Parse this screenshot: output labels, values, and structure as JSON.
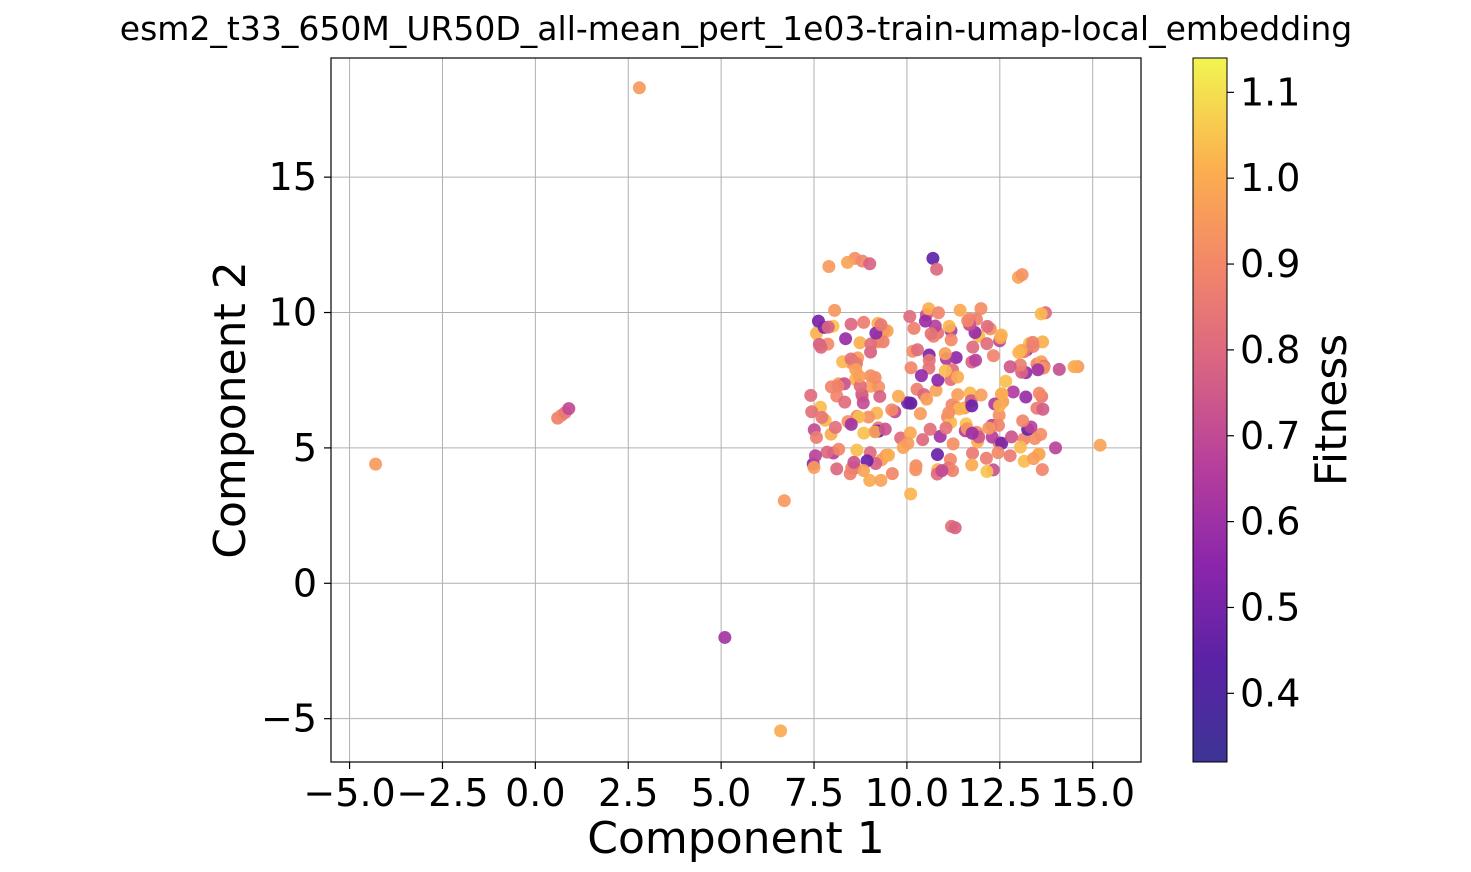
{
  "chart_data": {
    "type": "scatter",
    "title": "esm2_t33_650M_UR50D_all-mean_pert_1e03-train-umap-local_embedding",
    "xlabel": "Component 1",
    "ylabel": "Component 2",
    "xlim": [
      -5.5,
      16.3
    ],
    "ylim": [
      -6.6,
      19.4
    ],
    "grid": true,
    "x_ticks": [
      -5.0,
      -2.5,
      0.0,
      2.5,
      5.0,
      7.5,
      10.0,
      12.5,
      15.0
    ],
    "x_tick_labels": [
      "−5.0",
      "−2.5",
      "0.0",
      "2.5",
      "5.0",
      "7.5",
      "10.0",
      "12.5",
      "15.0"
    ],
    "y_ticks": [
      -5,
      0,
      5,
      10,
      15
    ],
    "y_tick_labels": [
      "−5",
      "0",
      "5",
      "10",
      "15"
    ],
    "colormap": "plasma",
    "colorbar": {
      "label": "Fitness",
      "range": [
        0.32,
        1.14
      ],
      "ticks": [
        0.4,
        0.5,
        0.6,
        0.7,
        0.8,
        0.9,
        1.0,
        1.1
      ],
      "tick_labels": [
        "0.4",
        "0.5",
        "0.6",
        "0.7",
        "0.8",
        "0.9",
        "1.0",
        "1.1"
      ]
    },
    "points": [
      {
        "x": 2.8,
        "y": 18.3,
        "c": 0.95
      },
      {
        "x": -4.3,
        "y": 4.4,
        "c": 0.95
      },
      {
        "x": 0.6,
        "y": 6.1,
        "c": 0.88
      },
      {
        "x": 0.7,
        "y": 6.2,
        "c": 0.9
      },
      {
        "x": 0.8,
        "y": 6.3,
        "c": 0.85
      },
      {
        "x": 0.9,
        "y": 6.45,
        "c": 0.7
      },
      {
        "x": 5.1,
        "y": -2.0,
        "c": 0.62
      },
      {
        "x": 6.6,
        "y": -5.45,
        "c": 1.0
      },
      {
        "x": 6.7,
        "y": 3.05,
        "c": 0.95
      },
      {
        "x": 15.2,
        "y": 5.1,
        "c": 0.98
      },
      {
        "x": 10.7,
        "y": 12.0,
        "c": 0.45
      },
      {
        "x": 10.8,
        "y": 11.6,
        "c": 0.8
      },
      {
        "x": 8.6,
        "y": 12.0,
        "c": 0.92
      },
      {
        "x": 8.8,
        "y": 11.9,
        "c": 0.9
      },
      {
        "x": 9.0,
        "y": 11.8,
        "c": 0.78
      },
      {
        "x": 7.9,
        "y": 11.7,
        "c": 0.95
      },
      {
        "x": 8.4,
        "y": 11.85,
        "c": 0.98
      },
      {
        "x": 13.0,
        "y": 11.3,
        "c": 0.98
      },
      {
        "x": 13.1,
        "y": 11.4,
        "c": 0.93
      },
      {
        "x": 11.2,
        "y": 2.1,
        "c": 0.82
      },
      {
        "x": 11.3,
        "y": 2.05,
        "c": 0.78
      },
      {
        "x": 10.1,
        "y": 3.3,
        "c": 1.02
      },
      {
        "x": 9.0,
        "y": 3.8,
        "c": 1.0
      },
      {
        "x": 9.3,
        "y": 3.8,
        "c": 0.98
      },
      {
        "x": 14.6,
        "y": 8.0,
        "c": 0.95
      },
      {
        "x": 14.5,
        "y": 8.0,
        "c": 1.0
      },
      {
        "x": 14.1,
        "y": 7.9,
        "c": 0.72
      },
      {
        "x": 14.0,
        "y": 5.0,
        "c": 0.68
      },
      {
        "x": 13.6,
        "y": 5.5,
        "c": 0.92
      },
      {
        "x": 13.5,
        "y": 8.1,
        "c": 0.88
      }
    ],
    "cluster_generated": {
      "center": [
        10.6,
        7.1
      ],
      "note_values_sampled": true
    }
  }
}
